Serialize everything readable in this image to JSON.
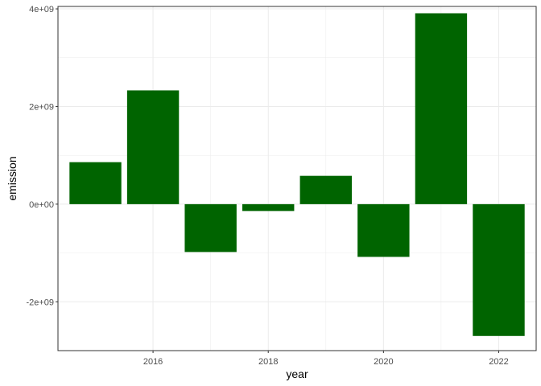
{
  "chart_data": {
    "type": "bar",
    "x": [
      2015,
      2016,
      2017,
      2018,
      2019,
      2020,
      2021,
      2022
    ],
    "values": [
      860000000,
      2330000000,
      -980000000,
      -140000000,
      580000000,
      -1080000000,
      3910000000,
      -2700000000
    ],
    "xlabel": "year",
    "ylabel": "emission",
    "xlim": [
      2014.35,
      2022.65
    ],
    "ylim": [
      -3000000000,
      4050000000
    ],
    "x_ticks": [
      2016,
      2018,
      2020,
      2022
    ],
    "x_tick_labels": [
      "2016",
      "2018",
      "2020",
      "2022"
    ],
    "y_ticks": [
      -2000000000,
      0,
      2000000000,
      4000000000
    ],
    "y_tick_labels": [
      "-2e+09",
      "0e+00",
      "2e+09",
      "4e+09"
    ],
    "bar_color": "#006400",
    "grid": true,
    "grid_color": "#ebebeb",
    "panel_border_color": "#333333",
    "legend": "none"
  }
}
